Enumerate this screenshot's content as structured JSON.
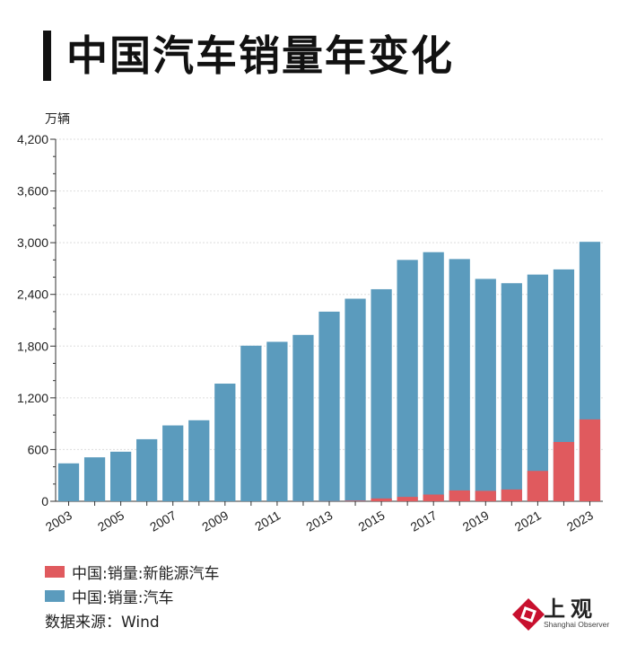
{
  "title": "中国汽车销量年变化",
  "chart_data": {
    "type": "bar",
    "stacked": false,
    "title": "中国汽车销量年变化",
    "ylabel": "万辆",
    "ylim": [
      0,
      4200
    ],
    "yticks": [
      0,
      600,
      1200,
      1800,
      2400,
      3000,
      3600,
      4200
    ],
    "ytick_labels": [
      "0",
      "600",
      "1,200",
      "1,800",
      "2,400",
      "3,000",
      "3,600",
      "4,200"
    ],
    "categories": [
      "2003",
      "2004",
      "2005",
      "2006",
      "2007",
      "2008",
      "2009",
      "2010",
      "2011",
      "2012",
      "2013",
      "2014",
      "2015",
      "2016",
      "2017",
      "2018",
      "2019",
      "2020",
      "2021",
      "2022",
      "2023"
    ],
    "xtick_labels": [
      "2003",
      "2005",
      "2007",
      "2009",
      "2011",
      "2013",
      "2015",
      "2017",
      "2019",
      "2021",
      "2023"
    ],
    "series": [
      {
        "name": "中国:销量:汽车",
        "color": "#5b9bbd",
        "values": [
          440,
          510,
          575,
          720,
          880,
          940,
          1365,
          1805,
          1850,
          1930,
          2200,
          2350,
          2460,
          2800,
          2890,
          2810,
          2580,
          2530,
          2630,
          2690,
          3010
        ]
      },
      {
        "name": "中国:销量:新能源汽车",
        "color": "#e05a5e",
        "values": [
          0,
          0,
          0,
          0,
          0,
          0,
          0,
          0,
          0,
          1,
          2,
          7,
          33,
          51,
          78,
          126,
          121,
          137,
          352,
          688,
          950
        ]
      }
    ],
    "grid": true,
    "legend_position": "bottom-left"
  },
  "legend": [
    {
      "label": "中国:销量:新能源汽车",
      "color": "#e05a5e"
    },
    {
      "label": "中国:销量:汽车",
      "color": "#5b9bbd"
    }
  ],
  "source": "数据来源：Wind",
  "logo": {
    "text": "上观",
    "subtext": "Shanghai Observer",
    "color": "#c8102e"
  }
}
